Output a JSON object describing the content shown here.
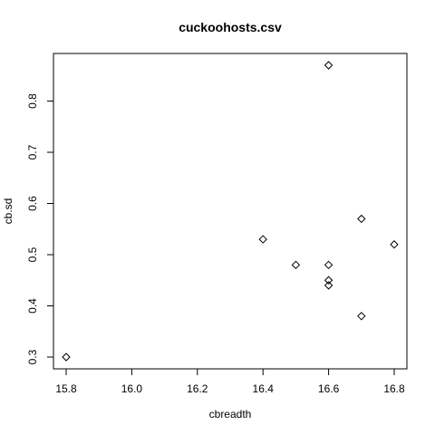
{
  "chart_data": {
    "type": "scatter",
    "title": "cuckoohosts.csv",
    "xlabel": "cbreadth",
    "ylabel": "cb.sd",
    "xlim": [
      15.8,
      16.8
    ],
    "ylim": [
      0.3,
      0.87
    ],
    "xticks": [
      15.8,
      16.0,
      16.2,
      16.4,
      16.6,
      16.8
    ],
    "xtick_labels": [
      "15.8",
      "16.0",
      "16.2",
      "16.4",
      "16.6",
      "16.8"
    ],
    "yticks": [
      0.3,
      0.4,
      0.5,
      0.6,
      0.7,
      0.8
    ],
    "ytick_labels": [
      "0.3",
      "0.4",
      "0.5",
      "0.6",
      "0.7",
      "0.8"
    ],
    "marker": "diamond",
    "grid": false,
    "points": [
      {
        "x": 15.8,
        "y": 0.3
      },
      {
        "x": 16.4,
        "y": 0.53
      },
      {
        "x": 16.5,
        "y": 0.48
      },
      {
        "x": 16.6,
        "y": 0.87
      },
      {
        "x": 16.6,
        "y": 0.48
      },
      {
        "x": 16.6,
        "y": 0.45
      },
      {
        "x": 16.6,
        "y": 0.44
      },
      {
        "x": 16.7,
        "y": 0.57
      },
      {
        "x": 16.7,
        "y": 0.38
      },
      {
        "x": 16.8,
        "y": 0.52
      }
    ]
  }
}
